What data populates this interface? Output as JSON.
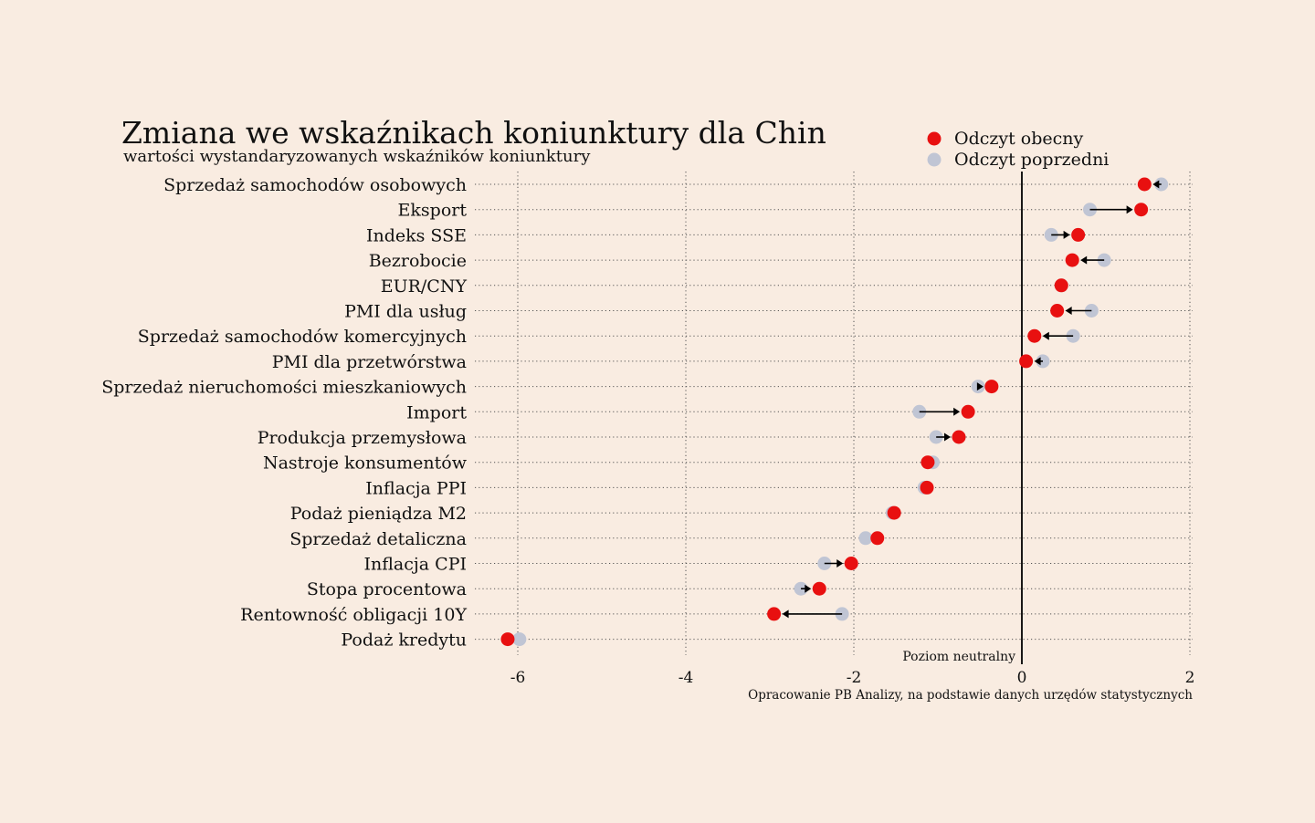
{
  "chart_data": {
    "type": "dumbbell",
    "title": "Zmiana we wskaźnikach koniunktury dla Chin",
    "subtitle": "wartości wystandaryzowanych wskaźników koniunktury",
    "xlim": [
      -6.5,
      2
    ],
    "xticks": [
      -6,
      -4,
      -2,
      0,
      2
    ],
    "xtick_labels": [
      "-6",
      "-4",
      "-2",
      "0",
      "2"
    ],
    "grid": true,
    "legend_position": "top-right",
    "reference_line": {
      "x": 0,
      "label": "Poziom neutralny"
    },
    "source": "Opracowanie PB Analizy, na podstawie danych urzędów statystycznych",
    "series": [
      {
        "name": "Odczyt obecny",
        "color": "#e81010"
      },
      {
        "name": "Odczyt poprzedni",
        "color": "#c0c5d4"
      }
    ],
    "categories": [
      "Sprzedaż samochodów osobowych",
      "Eksport",
      "Indeks SSE",
      "Bezrobocie",
      "EUR/CNY",
      "PMI dla usług",
      "Sprzedaż samochodów komercyjnych",
      "PMI dla przetwórstwa",
      "Sprzedaż nieruchomości mieszkaniowych",
      "Import",
      "Produkcja przemysłowa",
      "Nastroje konsumentów",
      "Inflacja PPI",
      "Podaż pieniądza M2",
      "Sprzedaż detaliczna",
      "Inflacja CPI",
      "Stopa procentowa",
      "Rentowność obligacji 10Y",
      "Podaż kredytu"
    ],
    "current": [
      1.46,
      1.42,
      0.67,
      0.6,
      0.47,
      0.42,
      0.15,
      0.05,
      -0.36,
      -0.64,
      -0.75,
      -1.12,
      -1.13,
      -1.52,
      -1.72,
      -2.03,
      -2.41,
      -2.95,
      -6.12
    ],
    "previous": [
      1.66,
      0.81,
      0.35,
      0.98,
      0.47,
      0.83,
      0.61,
      0.25,
      -0.52,
      -1.22,
      -1.02,
      -1.06,
      -1.16,
      -1.54,
      -1.86,
      -2.35,
      -2.63,
      -2.14,
      -5.98
    ]
  },
  "accent_colors": {
    "background": "#f9ece1",
    "current": "#e81010",
    "previous": "#c0c5d4",
    "line": "#000000"
  }
}
